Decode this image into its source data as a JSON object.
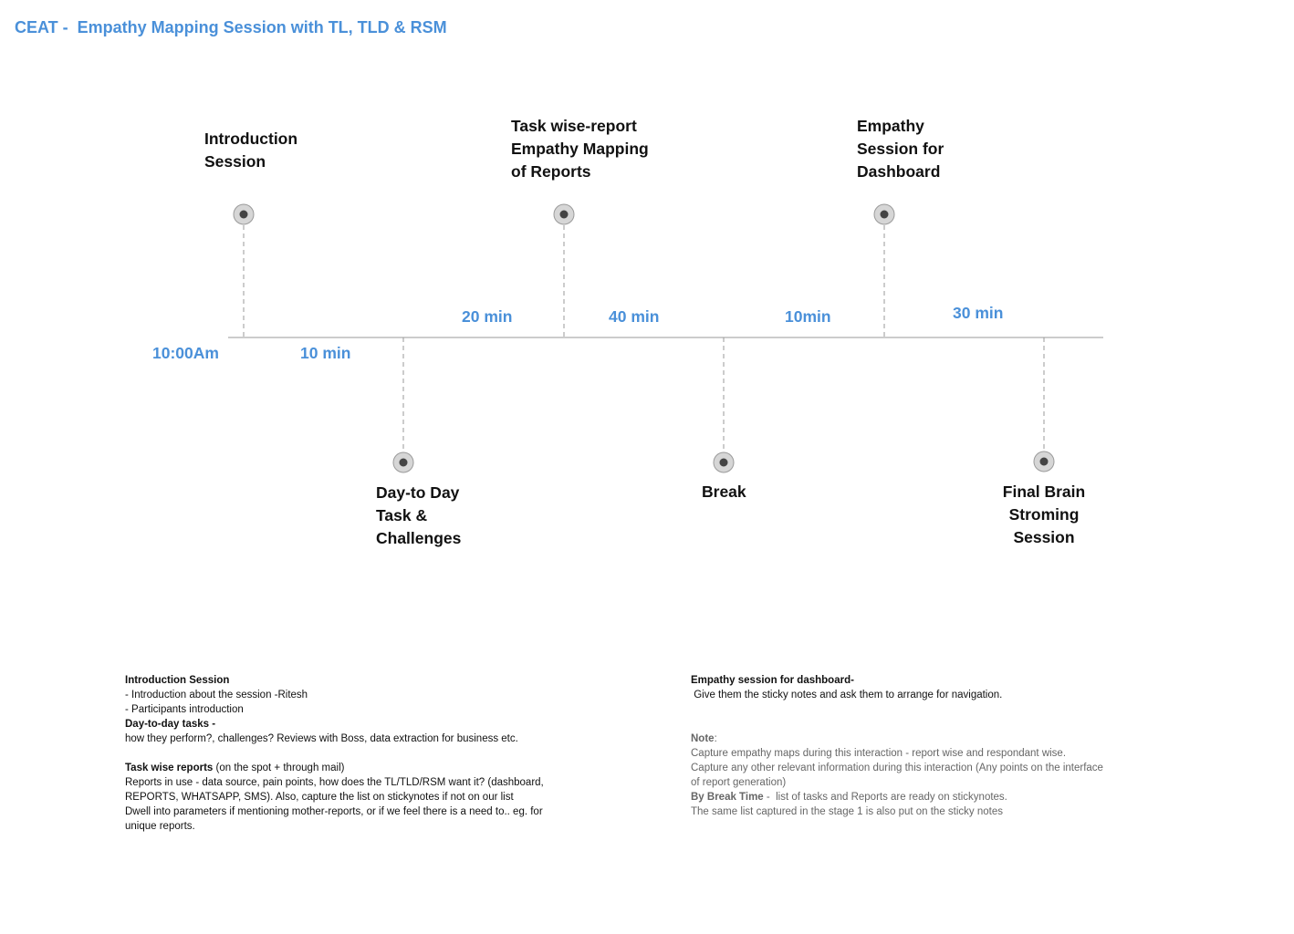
{
  "title": "CEAT -  Empathy Mapping Session with TL, TLD & RSM",
  "timeline": {
    "start_time": "10:00Am",
    "stages": [
      {
        "label": "Introduction\nSession",
        "position": "above"
      },
      {
        "label": "Day-to Day\nTask &\nChallenges",
        "position": "below"
      },
      {
        "label": "Task wise-report\nEmpathy Mapping\nof Reports",
        "position": "above"
      },
      {
        "label": "Break",
        "position": "below"
      },
      {
        "label": "Empathy\nSession for\nDashboard",
        "position": "above"
      },
      {
        "label": "Final Brain\nStroming\nSession",
        "position": "below"
      }
    ],
    "durations": [
      "10 min",
      "20 min",
      "40 min",
      "10min",
      "30 min"
    ]
  },
  "notes_left": {
    "intro_heading": "Introduction Session",
    "intro_items": [
      "- Introduction about the session -Ritesh",
      "- Participants introduction"
    ],
    "daily_heading": "Day-to-day tasks -",
    "daily_text": "how they perform?, challenges? Reviews with Boss, data extraction for business etc.",
    "reports_heading": "Task wise reports",
    "reports_heading_suffix": " (on the spot + through mail)",
    "reports_lines": [
      "Reports in use - data source, pain points, how does the TL/TLD/RSM want it? (dashboard,",
      "REPORTS, WHATSAPP, SMS). Also, capture the list on stickynotes if not on our list",
      "Dwell into parameters if mentioning mother-reports, or if we feel there is a need to.. eg. for",
      "unique reports."
    ]
  },
  "notes_right": {
    "dashboard_heading": "Empathy session for dashboard-",
    "dashboard_text": " Give them the sticky notes and ask them to arrange for navigation.",
    "note_heading": "Note",
    "note_colon": ":",
    "note_lines": [
      "Capture empathy maps during this interaction - report wise and respondant wise.",
      "Capture any other relevant information during this interaction (Any points on the interface",
      "of report generation)"
    ],
    "break_heading": "By Break Time",
    "break_text": " -  list of tasks and Reports are ready on stickynotes.",
    "final_line": "The same list captured in the stage 1 is also put on the sticky notes"
  },
  "colors": {
    "accent": "#4a90d9",
    "line": "#999999",
    "marker": "#444444",
    "marker_ring": "#d6d6d6"
  }
}
